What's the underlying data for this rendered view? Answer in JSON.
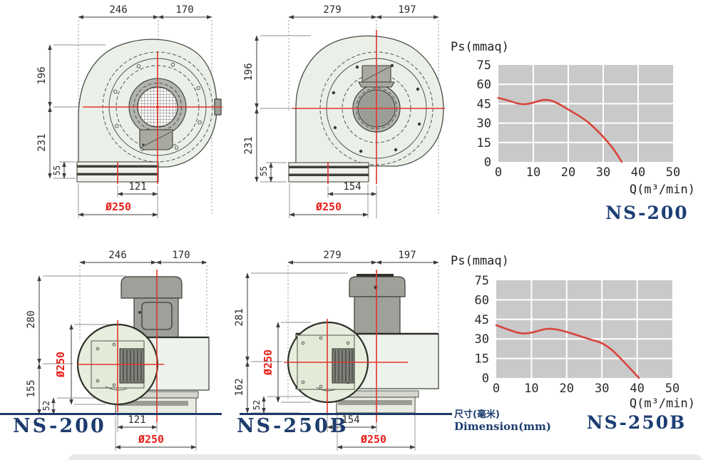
{
  "panels": [
    {
      "id": "ns200-front",
      "dims": {
        "top_a": "246",
        "top_b": "170",
        "left_a": "196",
        "left_b": "231",
        "left_c": "55",
        "bottom_a": "121",
        "bottom_dia": "Ø250"
      }
    },
    {
      "id": "ns250b-front",
      "dims": {
        "top_a": "279",
        "top_b": "197",
        "left_a": "196",
        "left_b": "231",
        "left_c": "55",
        "bottom_a": "154",
        "bottom_dia": "Ø250"
      }
    },
    {
      "id": "ns200-side",
      "label": "NS-200",
      "dims": {
        "top_a": "246",
        "top_b": "170",
        "left_a": "280",
        "left_b": "155",
        "left_c": "52",
        "dia_v": "Ø250",
        "bottom_a": "121",
        "bottom_dia": "Ø250"
      }
    },
    {
      "id": "ns250b-side",
      "label": "NS-250B",
      "dims": {
        "top_a": "279",
        "top_b": "197",
        "left_a": "281",
        "left_b": "162",
        "left_c": "52",
        "dia_v": "Ø250",
        "bottom_a": "154",
        "bottom_dia": "Ø250"
      }
    }
  ],
  "chart_data": [
    {
      "type": "line",
      "title": "NS-200",
      "ylabel": "Ps(mmaq)",
      "xlabel": "Q(m³/min)",
      "xlim": [
        0,
        50
      ],
      "ylim": [
        0,
        75
      ],
      "xticks": [
        0,
        10,
        20,
        30,
        40,
        50
      ],
      "yticks": [
        0,
        15,
        30,
        45,
        60,
        75
      ],
      "grid": true,
      "legend": "none",
      "series": [
        {
          "name": "NS-200",
          "color": "#d8443a",
          "points": [
            [
              0,
              49.5
            ],
            [
              3,
              47.5
            ],
            [
              6,
              44.5
            ],
            [
              9,
              44.8
            ],
            [
              13,
              48.5
            ],
            [
              16,
              47
            ],
            [
              20,
              40.5
            ],
            [
              25,
              32.5
            ],
            [
              28,
              25
            ],
            [
              30,
              19.5
            ],
            [
              33,
              10
            ],
            [
              35.3,
              0
            ]
          ]
        }
      ]
    },
    {
      "type": "line",
      "title": "NS-250B",
      "ylabel": "Ps(mmaq)",
      "xlabel": "Q(m³/min)",
      "xlim": [
        0,
        50
      ],
      "ylim": [
        0,
        75
      ],
      "xticks": [
        0,
        10,
        20,
        30,
        40,
        50
      ],
      "yticks": [
        0,
        15,
        30,
        45,
        60,
        75
      ],
      "grid": true,
      "legend": "none",
      "series": [
        {
          "name": "NS-250B",
          "color": "#d8443a",
          "points": [
            [
              0,
              40.5
            ],
            [
              4,
              36.5
            ],
            [
              7,
              34
            ],
            [
              10,
              34.5
            ],
            [
              14,
              38
            ],
            [
              17,
              37.5
            ],
            [
              20,
              35.5
            ],
            [
              25,
              31
            ],
            [
              28,
              28.5
            ],
            [
              30,
              27
            ],
            [
              33,
              21.5
            ],
            [
              36,
              13
            ],
            [
              38.5,
              6
            ],
            [
              40.5,
              0
            ]
          ]
        }
      ]
    }
  ],
  "footer": {
    "note_cn": "尺寸(毫米)",
    "note_en": "Dimension(mm)"
  },
  "colors": {
    "accent_red": "#e0352c",
    "dim_red_text": "#e8211c",
    "navy": "#1d3968",
    "chart_bg": "#c9c9c9",
    "grid_line": "#ffffff",
    "body_fill": "#eaf0e8"
  }
}
